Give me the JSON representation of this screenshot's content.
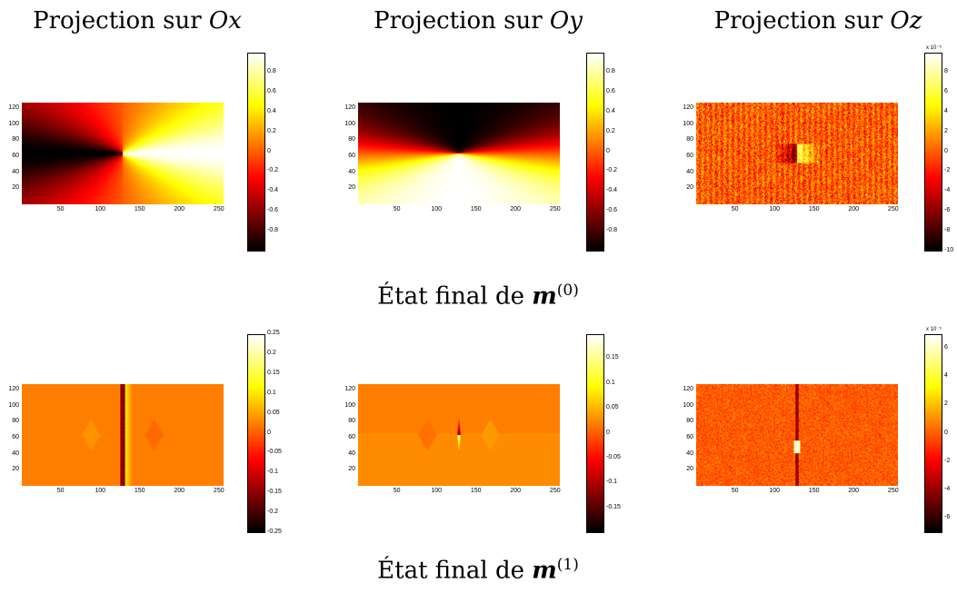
{
  "column_titles": [
    {
      "prefix": "Projection sur ",
      "axis": "Ox"
    },
    {
      "prefix": "Projection sur ",
      "axis": "Oy"
    },
    {
      "prefix": "Projection sur ",
      "axis": "Oz"
    }
  ],
  "row_captions": [
    {
      "prefix": "État final de ",
      "symbol": "m",
      "superscript": "(0)"
    },
    {
      "prefix": "État final de ",
      "symbol": "m",
      "superscript": "(1)"
    }
  ],
  "colormap": "hot",
  "chart_data": [
    {
      "type": "heatmap",
      "row": 0,
      "col": 0,
      "field": "mx",
      "xlim": [
        1,
        256
      ],
      "ylim": [
        1,
        128
      ],
      "xticks": [
        50,
        100,
        150,
        200,
        250
      ],
      "yticks": [
        20,
        40,
        60,
        80,
        100,
        120
      ],
      "clim": [
        -1,
        1
      ],
      "cbar_ticks": [
        0.8,
        0.6,
        0.4,
        0.2,
        0,
        -0.2,
        -0.4,
        -0.6,
        -0.8
      ],
      "cbar_multiplier": "",
      "cbar_labels": [
        "0.8",
        "0.6",
        "0.4",
        "0.2",
        "0",
        "-0.2",
        "-0.4",
        "-0.6",
        "-0.8"
      ]
    },
    {
      "type": "heatmap",
      "row": 0,
      "col": 1,
      "field": "my",
      "xlim": [
        1,
        256
      ],
      "ylim": [
        1,
        128
      ],
      "xticks": [
        50,
        100,
        150,
        200,
        250
      ],
      "yticks": [
        20,
        40,
        60,
        80,
        100,
        120
      ],
      "clim": [
        -1,
        1
      ],
      "cbar_ticks": [
        0.8,
        0.6,
        0.4,
        0.2,
        0,
        -0.2,
        -0.4,
        -0.6,
        -0.8
      ],
      "cbar_multiplier": "",
      "cbar_labels": [
        "0.8",
        "0.6",
        "0.4",
        "0.2",
        "0",
        "-0.2",
        "-0.4",
        "-0.6",
        "-0.8"
      ]
    },
    {
      "type": "heatmap",
      "row": 0,
      "col": 2,
      "field": "mz",
      "xlim": [
        1,
        256
      ],
      "ylim": [
        1,
        128
      ],
      "xticks": [
        50,
        100,
        150,
        200,
        250
      ],
      "yticks": [
        20,
        40,
        60,
        80,
        100,
        120
      ],
      "clim": [
        -10,
        10
      ],
      "cbar_ticks": [
        8,
        6,
        4,
        2,
        0,
        -2,
        -4,
        -6,
        -8,
        -10
      ],
      "cbar_multiplier": "x 10⁻⁵",
      "cbar_labels": [
        "8",
        "6",
        "4",
        "2",
        "0",
        "-2",
        "-4",
        "-6",
        "-8",
        "-10"
      ]
    },
    {
      "type": "heatmap",
      "row": 1,
      "col": 0,
      "field": "mx",
      "xlim": [
        1,
        256
      ],
      "ylim": [
        1,
        128
      ],
      "xticks": [
        50,
        100,
        150,
        200,
        250
      ],
      "yticks": [
        20,
        40,
        60,
        80,
        100,
        120
      ],
      "clim": [
        -0.25,
        0.25
      ],
      "cbar_ticks": [
        0.25,
        0.2,
        0.15,
        0.1,
        0.05,
        0,
        -0.05,
        -0.1,
        -0.15,
        -0.2,
        -0.25
      ],
      "cbar_multiplier": "",
      "cbar_labels": [
        "0.25",
        "0.2",
        "0.15",
        "0.1",
        "0.05",
        "0",
        "-0.05",
        "-0.1",
        "-0.15",
        "-0.2",
        "-0.25"
      ]
    },
    {
      "type": "heatmap",
      "row": 1,
      "col": 1,
      "field": "my",
      "xlim": [
        1,
        256
      ],
      "ylim": [
        1,
        128
      ],
      "xticks": [
        50,
        100,
        150,
        200,
        250
      ],
      "yticks": [
        20,
        40,
        60,
        80,
        100,
        120
      ],
      "clim": [
        -0.2,
        0.2
      ],
      "cbar_ticks": [
        0.15,
        0.1,
        0.05,
        0,
        -0.05,
        -0.1,
        -0.15
      ],
      "cbar_multiplier": "",
      "cbar_labels": [
        "0.15",
        "0.1",
        "0.05",
        "0",
        "-0.05",
        "-0.1",
        "-0.15"
      ]
    },
    {
      "type": "heatmap",
      "row": 1,
      "col": 2,
      "field": "mz",
      "xlim": [
        1,
        256
      ],
      "ylim": [
        1,
        128
      ],
      "xticks": [
        50,
        100,
        150,
        200,
        250
      ],
      "yticks": [
        20,
        40,
        60,
        80,
        100,
        120
      ],
      "clim": [
        -7,
        7
      ],
      "cbar_ticks": [
        6,
        4,
        2,
        0,
        -2,
        -4,
        -6
      ],
      "cbar_multiplier": "x 10⁻⁵",
      "cbar_labels": [
        "6",
        "4",
        "2",
        "0",
        "-2",
        "-4",
        "-6"
      ]
    }
  ]
}
